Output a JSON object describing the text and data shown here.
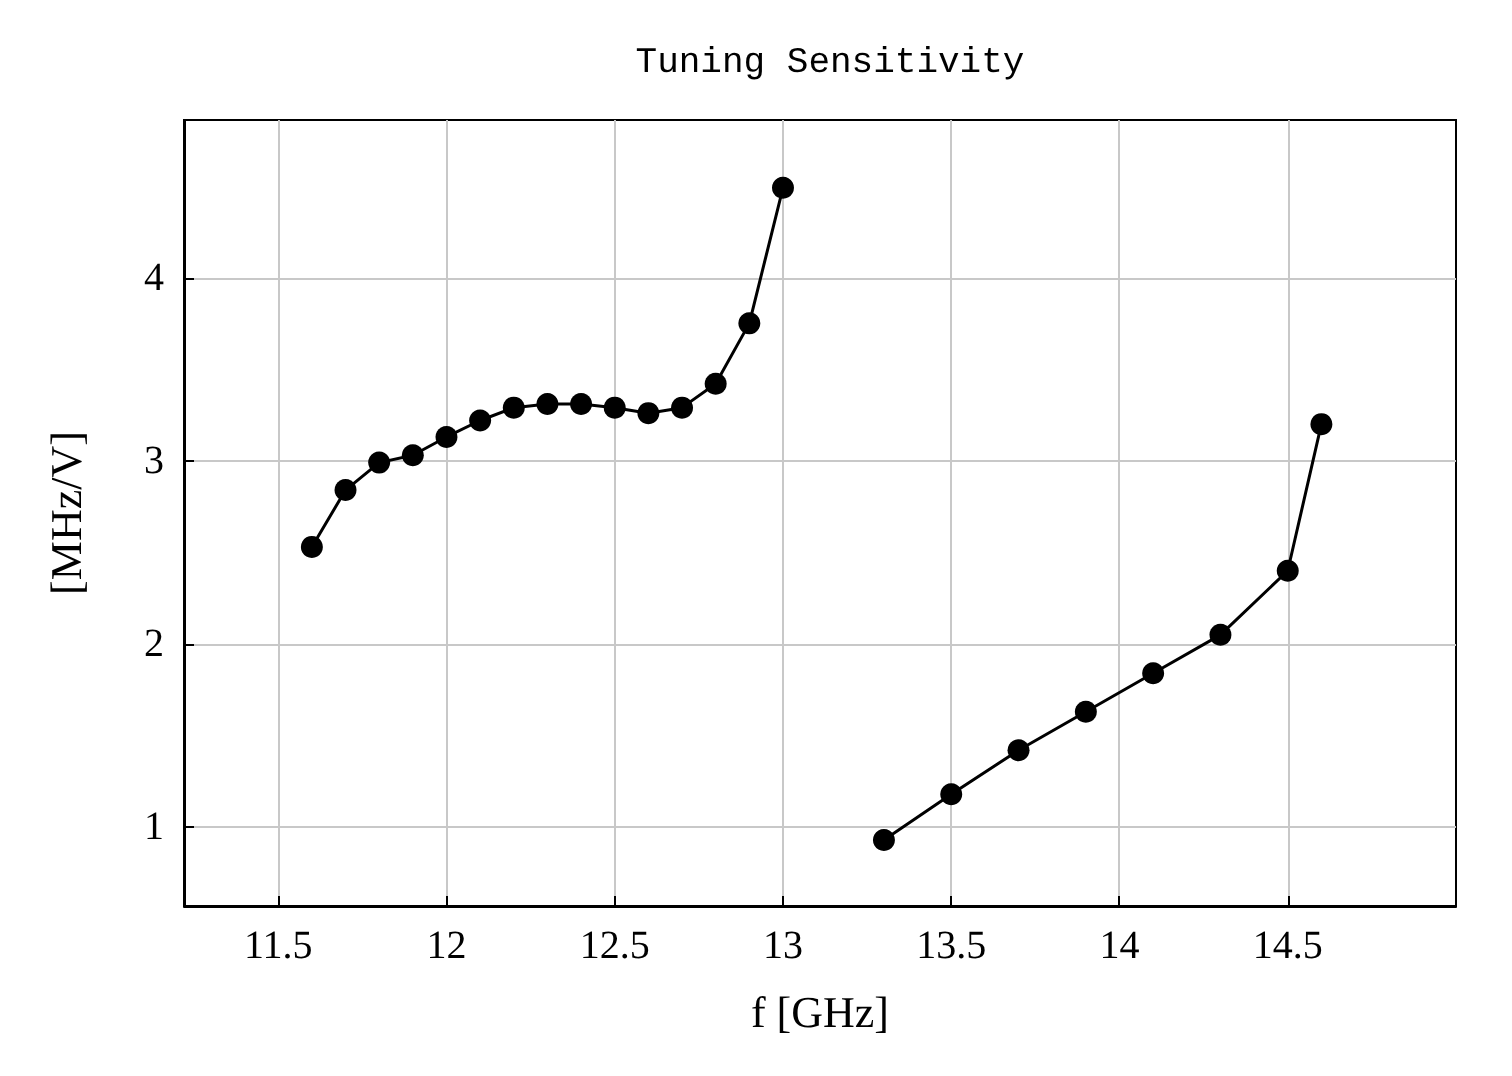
{
  "chart_data": {
    "type": "line",
    "title": "Tuning Sensitivity",
    "xlabel": "f [GHz]",
    "ylabel": "[MHz/V]",
    "series": [
      {
        "color": "#000000",
        "x": [
          11.6,
          11.7,
          11.8,
          11.9,
          12.0,
          12.1,
          12.2,
          12.3,
          12.4,
          12.5,
          12.6,
          12.7,
          12.8,
          12.9,
          13.0
        ],
        "values": [
          2.53,
          2.84,
          2.99,
          3.03,
          3.13,
          3.22,
          3.29,
          3.31,
          3.31,
          3.29,
          3.26,
          3.29,
          3.42,
          3.75,
          4.49
        ]
      },
      {
        "color": "#000000",
        "x": [
          13.3,
          13.5,
          13.7,
          13.9,
          14.1,
          14.3,
          14.5,
          14.6
        ],
        "values": [
          0.93,
          1.18,
          1.42,
          1.63,
          1.84,
          2.05,
          2.4,
          3.2
        ]
      }
    ],
    "xlim": [
      11.22,
      15.0
    ],
    "xticks": [
      11.5,
      12,
      12.5,
      13,
      13.5,
      14,
      14.5
    ],
    "ylim": [
      0.57,
      4.86
    ],
    "yticks": [
      1,
      2,
      3,
      4
    ],
    "grid": true,
    "marker": "circle",
    "line_style": "solid"
  }
}
